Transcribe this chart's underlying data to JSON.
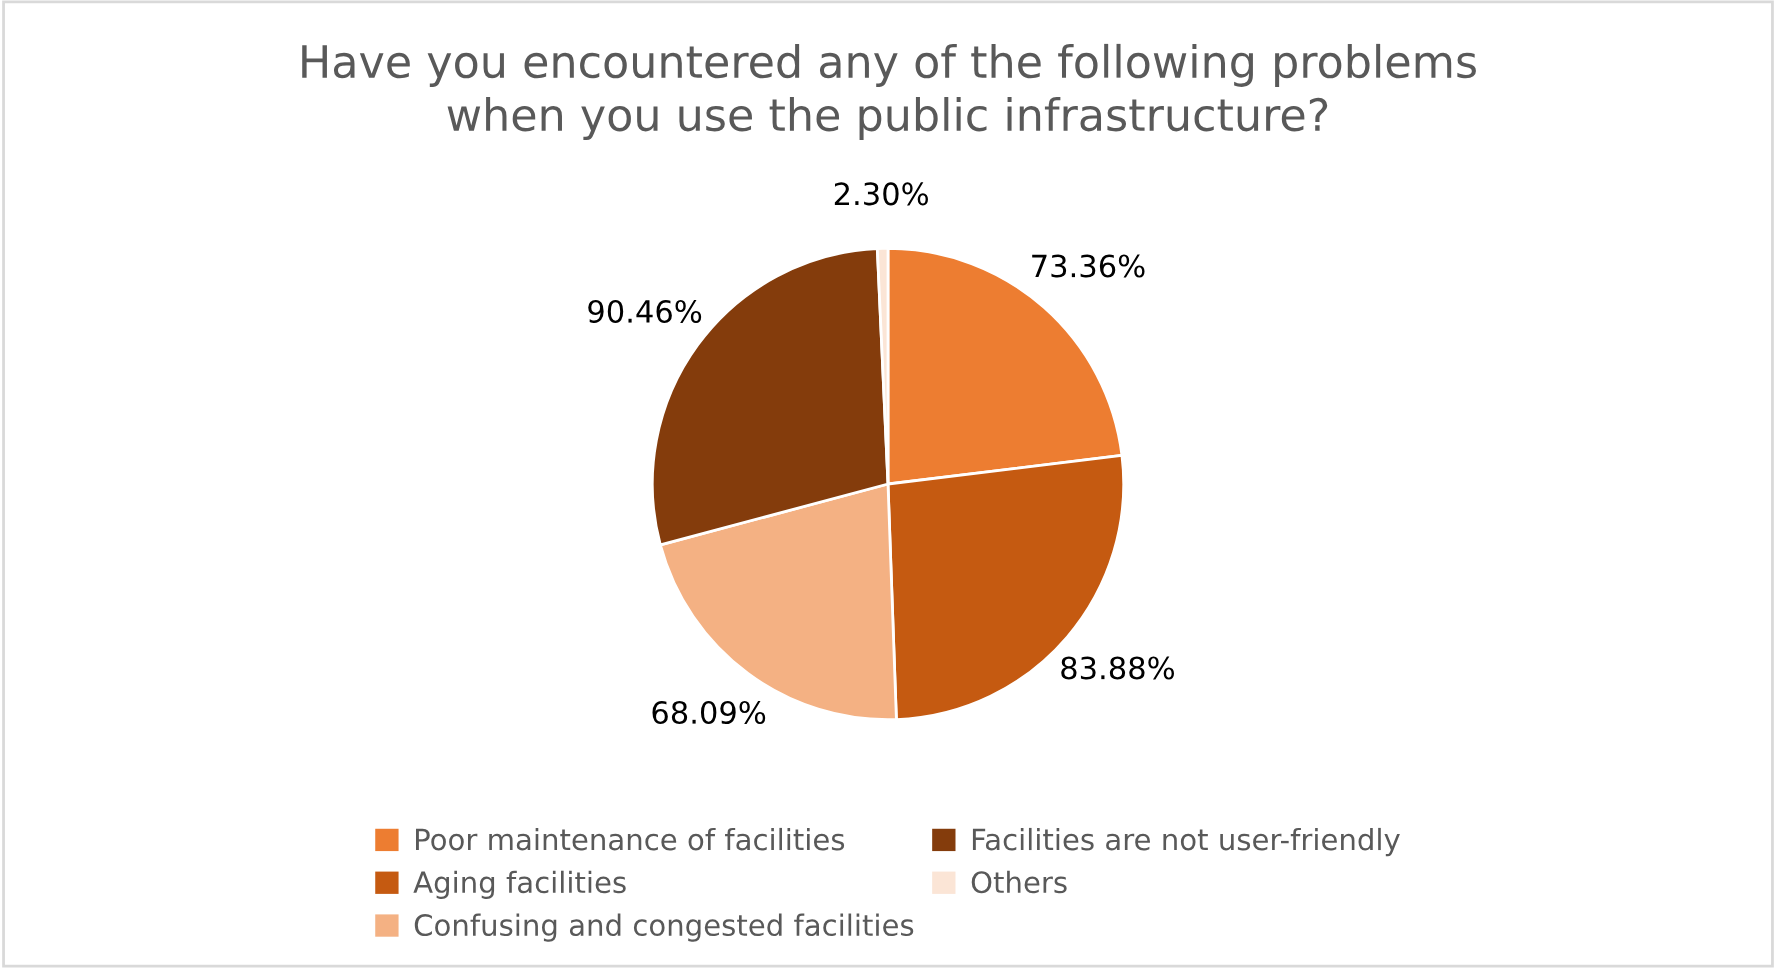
{
  "chart_data": {
    "type": "pie",
    "title": "Have you encountered any of the following problems\nwhen you use the public infrastructure?",
    "categories": [
      "Poor maintenance of facilities",
      "Aging facilities",
      "Confusing and congested facilities",
      "Facilities are not user-friendly",
      "Others"
    ],
    "values": [
      73.36,
      83.88,
      68.09,
      90.46,
      2.3
    ],
    "value_labels": [
      "73.36%",
      "83.88%",
      "68.09%",
      "90.46%",
      "2.30%"
    ],
    "colors": [
      "#ed7d31",
      "#c55a11",
      "#f4b183",
      "#843c0c",
      "#fbe5d6"
    ],
    "legend": "bottom"
  }
}
